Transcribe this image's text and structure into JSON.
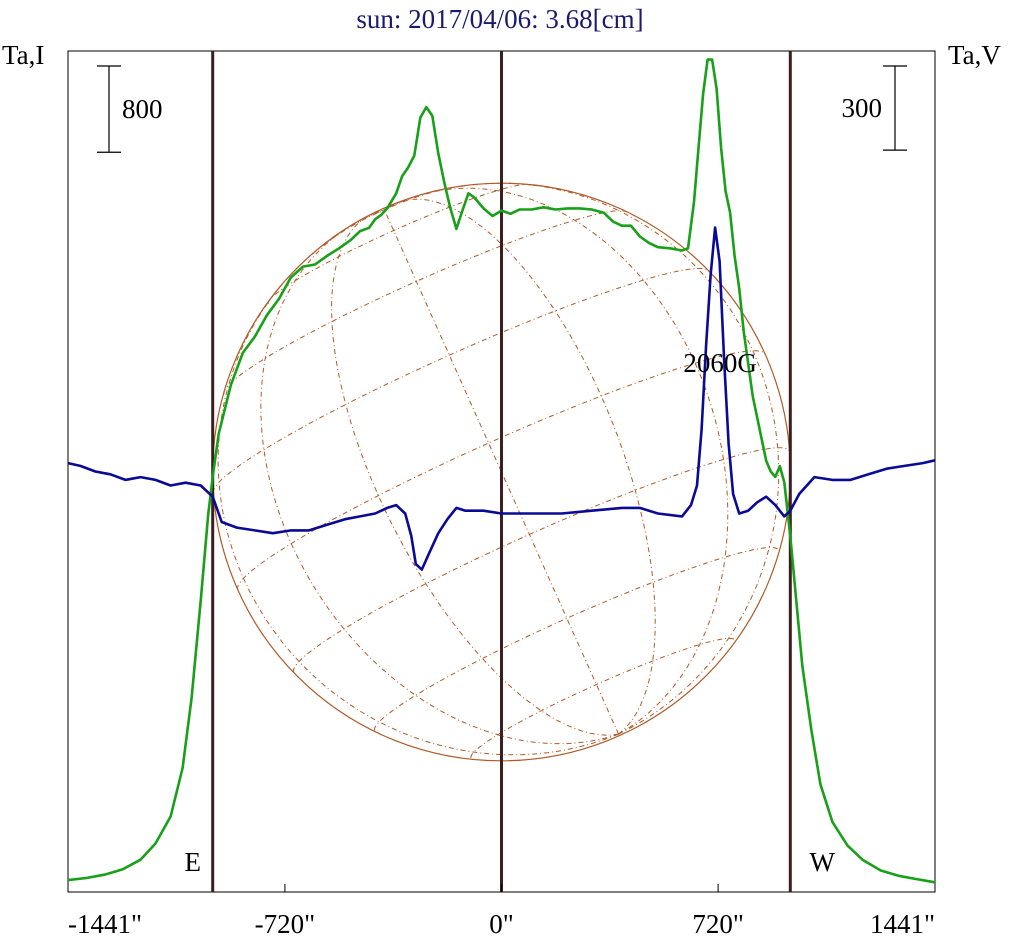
{
  "chart_data": {
    "type": "line",
    "title": "sun: 2017/04/06: 3.68[cm]",
    "left_axis_label": "Ta,I",
    "right_axis_label": "Ta,V",
    "xlim": [
      -1441,
      1441
    ],
    "x_ticks": [
      {
        "value": -1441,
        "label": "-1441\""
      },
      {
        "value": -720,
        "label": "-720\""
      },
      {
        "value": 0,
        "label": "0\""
      },
      {
        "value": 720,
        "label": "720\""
      },
      {
        "value": 1441,
        "label": "1441\""
      }
    ],
    "limb_markers": [
      {
        "x": -960,
        "label": "E"
      },
      {
        "x": 0,
        "label": ""
      },
      {
        "x": 960,
        "label": "W"
      }
    ],
    "scale_bars": [
      {
        "axis": "I",
        "value": 800,
        "label": "800"
      },
      {
        "axis": "V",
        "value": 300,
        "label": "300"
      }
    ],
    "annotation": {
      "x": 710,
      "label": "2060G"
    },
    "colors": {
      "intensity": "#18a018",
      "polarization": "#0a0a96",
      "limb_lines": "#3c1e1e",
      "grid": "#b05a28",
      "title": "#1a1a6e"
    },
    "solar_radius_arcsec": 960,
    "ylim_I": [
      0,
      7800
    ],
    "ylim_V": [
      -1500,
      1500
    ],
    "series": [
      {
        "key": "I",
        "points": [
          [
            -1441,
            110
          ],
          [
            -1380,
            130
          ],
          [
            -1320,
            160
          ],
          [
            -1260,
            210
          ],
          [
            -1200,
            300
          ],
          [
            -1150,
            450
          ],
          [
            -1100,
            700
          ],
          [
            -1060,
            1150
          ],
          [
            -1030,
            1800
          ],
          [
            -1000,
            2700
          ],
          [
            -975,
            3500
          ],
          [
            -960,
            3850
          ],
          [
            -940,
            4250
          ],
          [
            -900,
            4700
          ],
          [
            -860,
            5000
          ],
          [
            -820,
            5150
          ],
          [
            -780,
            5350
          ],
          [
            -740,
            5500
          ],
          [
            -700,
            5700
          ],
          [
            -660,
            5800
          ],
          [
            -620,
            5820
          ],
          [
            -580,
            5900
          ],
          [
            -540,
            5970
          ],
          [
            -500,
            6050
          ],
          [
            -470,
            6130
          ],
          [
            -440,
            6160
          ],
          [
            -420,
            6240
          ],
          [
            -400,
            6280
          ],
          [
            -380,
            6340
          ],
          [
            -350,
            6480
          ],
          [
            -330,
            6640
          ],
          [
            -310,
            6720
          ],
          [
            -290,
            6830
          ],
          [
            -270,
            7180
          ],
          [
            -250,
            7280
          ],
          [
            -230,
            7200
          ],
          [
            -210,
            6850
          ],
          [
            -190,
            6580
          ],
          [
            -170,
            6340
          ],
          [
            -150,
            6150
          ],
          [
            -130,
            6320
          ],
          [
            -110,
            6480
          ],
          [
            -90,
            6440
          ],
          [
            -60,
            6340
          ],
          [
            -30,
            6270
          ],
          [
            0,
            6320
          ],
          [
            30,
            6290
          ],
          [
            60,
            6330
          ],
          [
            100,
            6330
          ],
          [
            140,
            6350
          ],
          [
            180,
            6330
          ],
          [
            220,
            6340
          ],
          [
            260,
            6340
          ],
          [
            300,
            6330
          ],
          [
            340,
            6300
          ],
          [
            370,
            6220
          ],
          [
            400,
            6180
          ],
          [
            430,
            6180
          ],
          [
            460,
            6080
          ],
          [
            490,
            6020
          ],
          [
            520,
            5980
          ],
          [
            560,
            5970
          ],
          [
            600,
            5950
          ],
          [
            620,
            5970
          ],
          [
            640,
            6400
          ],
          [
            655,
            6900
          ],
          [
            670,
            7400
          ],
          [
            685,
            7720
          ],
          [
            700,
            7720
          ],
          [
            715,
            7450
          ],
          [
            730,
            6900
          ],
          [
            745,
            6500
          ],
          [
            760,
            6300
          ],
          [
            775,
            5900
          ],
          [
            790,
            5600
          ],
          [
            805,
            5200
          ],
          [
            820,
            4900
          ],
          [
            835,
            4600
          ],
          [
            850,
            4400
          ],
          [
            865,
            4200
          ],
          [
            880,
            4000
          ],
          [
            895,
            3900
          ],
          [
            910,
            3850
          ],
          [
            925,
            3950
          ],
          [
            940,
            3800
          ],
          [
            960,
            3300
          ],
          [
            980,
            2700
          ],
          [
            1000,
            2100
          ],
          [
            1030,
            1500
          ],
          [
            1060,
            1000
          ],
          [
            1100,
            650
          ],
          [
            1150,
            430
          ],
          [
            1200,
            300
          ],
          [
            1260,
            200
          ],
          [
            1320,
            150
          ],
          [
            1380,
            120
          ],
          [
            1441,
            90
          ]
        ]
      },
      {
        "key": "V",
        "points": [
          [
            -1441,
            30
          ],
          [
            -1400,
            20
          ],
          [
            -1350,
            0
          ],
          [
            -1300,
            -10
          ],
          [
            -1250,
            -30
          ],
          [
            -1200,
            -20
          ],
          [
            -1150,
            -30
          ],
          [
            -1100,
            -50
          ],
          [
            -1050,
            -40
          ],
          [
            -1000,
            -50
          ],
          [
            -960,
            -90
          ],
          [
            -930,
            -180
          ],
          [
            -880,
            -200
          ],
          [
            -820,
            -210
          ],
          [
            -760,
            -220
          ],
          [
            -700,
            -210
          ],
          [
            -640,
            -210
          ],
          [
            -580,
            -190
          ],
          [
            -520,
            -170
          ],
          [
            -470,
            -160
          ],
          [
            -420,
            -150
          ],
          [
            -380,
            -130
          ],
          [
            -350,
            -120
          ],
          [
            -320,
            -150
          ],
          [
            -300,
            -230
          ],
          [
            -285,
            -330
          ],
          [
            -265,
            -350
          ],
          [
            -240,
            -290
          ],
          [
            -210,
            -220
          ],
          [
            -180,
            -170
          ],
          [
            -150,
            -130
          ],
          [
            -120,
            -140
          ],
          [
            -60,
            -140
          ],
          [
            0,
            -150
          ],
          [
            100,
            -150
          ],
          [
            200,
            -150
          ],
          [
            300,
            -140
          ],
          [
            400,
            -130
          ],
          [
            460,
            -130
          ],
          [
            520,
            -150
          ],
          [
            600,
            -160
          ],
          [
            630,
            -120
          ],
          [
            650,
            -50
          ],
          [
            665,
            150
          ],
          [
            680,
            450
          ],
          [
            695,
            700
          ],
          [
            710,
            870
          ],
          [
            725,
            750
          ],
          [
            740,
            400
          ],
          [
            755,
            100
          ],
          [
            770,
            -80
          ],
          [
            790,
            -150
          ],
          [
            820,
            -140
          ],
          [
            850,
            -110
          ],
          [
            880,
            -90
          ],
          [
            910,
            -120
          ],
          [
            940,
            -160
          ],
          [
            960,
            -140
          ],
          [
            990,
            -80
          ],
          [
            1040,
            -20
          ],
          [
            1100,
            -30
          ],
          [
            1160,
            -30
          ],
          [
            1220,
            -10
          ],
          [
            1280,
            10
          ],
          [
            1340,
            20
          ],
          [
            1400,
            30
          ],
          [
            1441,
            40
          ]
        ]
      }
    ]
  }
}
